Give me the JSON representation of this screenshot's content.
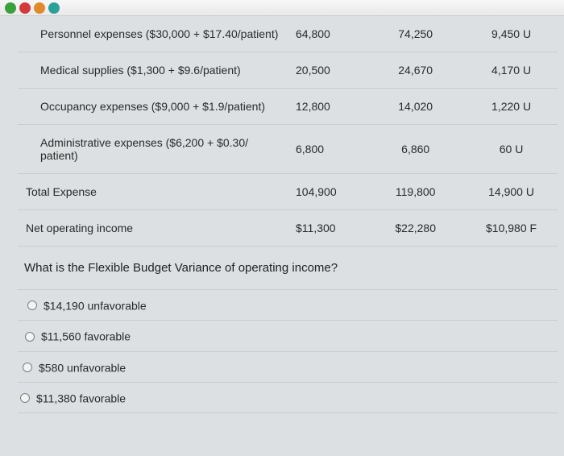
{
  "toolbar": {
    "icons": [
      {
        "name": "nav-green-icon",
        "color": "#3aa23a"
      },
      {
        "name": "nav-red-icon",
        "color": "#d23b3b"
      },
      {
        "name": "nav-orange-icon",
        "color": "#e08a2e"
      },
      {
        "name": "nav-teal-icon",
        "color": "#2aa19a"
      }
    ]
  },
  "table": {
    "rows": [
      {
        "label": "Personnel expenses ($30,000 + $17.40/patient)",
        "a": "64,800",
        "b": "74,250",
        "c": "9,450 U",
        "indent": true
      },
      {
        "label": "Medical supplies ($1,300 + $9.6/patient)",
        "a": "20,500",
        "b": "24,670",
        "c": "4,170 U",
        "indent": true
      },
      {
        "label": "Occupancy expenses ($9,000 + $1.9/patient)",
        "a": "12,800",
        "b": "14,020",
        "c": "1,220 U",
        "indent": true
      },
      {
        "label": "Administrative expenses ($6,200 + $0.30/ patient)",
        "a": "6,800",
        "b": "6,860",
        "c": "60 U",
        "indent": true
      },
      {
        "label": "Total Expense",
        "a": "104,900",
        "b": "119,800",
        "c": "14,900 U",
        "indent": false
      },
      {
        "label": "Net operating income",
        "a": "$11,300",
        "b": "$22,280",
        "c": "$10,980 F",
        "indent": false
      }
    ]
  },
  "question": {
    "text": "What is the Flexible Budget Variance of operating income?",
    "options": [
      "$14,190 unfavorable",
      "$11,560 favorable",
      "$580 unfavorable",
      "$11,380 favorable"
    ]
  }
}
